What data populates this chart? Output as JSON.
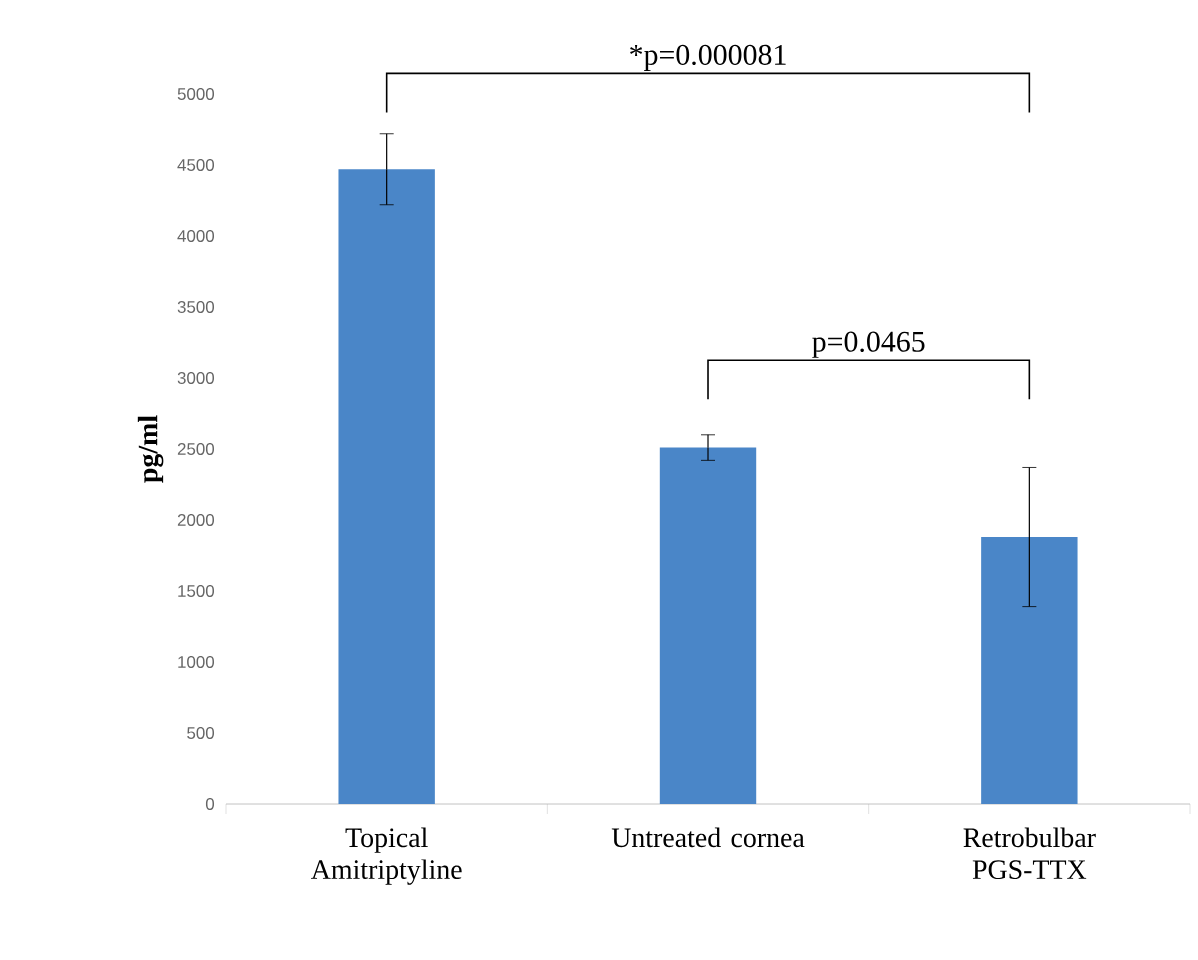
{
  "chart_data": {
    "type": "bar",
    "ylabel": "pg/ml",
    "categories": [
      "Topical Amitriptyline",
      "Untreated cornea",
      "Retrobulbar PGS-TTX"
    ],
    "values": [
      4470,
      2510,
      1880
    ],
    "errors": [
      250,
      90,
      490
    ],
    "color": "#4a86c8",
    "ylim": [
      0,
      5000
    ],
    "yticks": [
      0,
      500,
      1000,
      1500,
      2000,
      2500,
      3000,
      3500,
      4000,
      4500,
      5000
    ],
    "grid": false,
    "annotations": [
      "*p=0.000081",
      "p=0.0465"
    ]
  }
}
